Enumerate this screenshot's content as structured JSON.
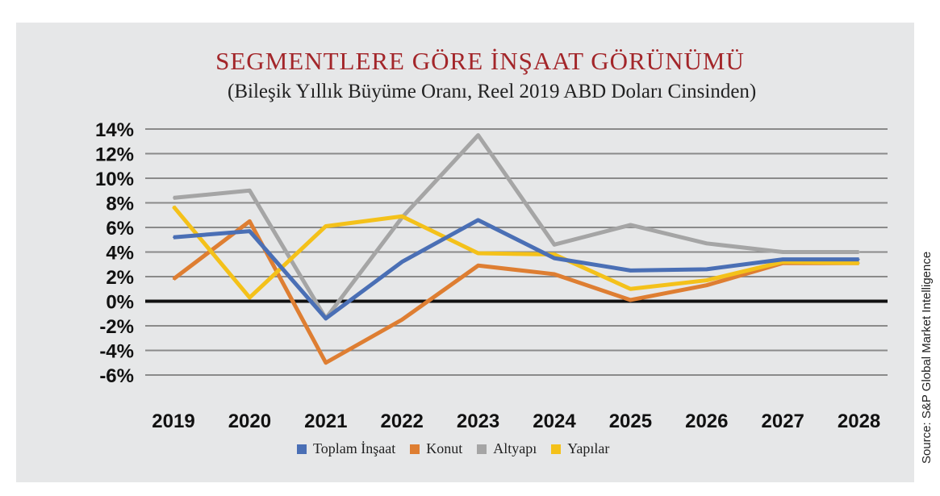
{
  "chart_data": {
    "type": "line",
    "title": "SEGMENTLERE GÖRE İNŞAAT GÖRÜNÜMÜ",
    "subtitle": "(Bileşik Yıllık Büyüme Oranı, Reel 2019 ABD Doları Cinsinden)",
    "source": "Source: S&P Global Market Intelligence",
    "categories": [
      "2019",
      "2020",
      "2021",
      "2022",
      "2023",
      "2024",
      "2025",
      "2026",
      "2027",
      "2028"
    ],
    "yticks": [
      "14%",
      "12%",
      "10%",
      "8%",
      "6%",
      "4%",
      "2%",
      "0%",
      "-2%",
      "-4%",
      "-6%"
    ],
    "ylim": [
      -6,
      14
    ],
    "grid": true,
    "legend_position": "bottom",
    "series": [
      {
        "name": "Toplam İnşaat",
        "color": "#4a6fb5",
        "values": [
          5.2,
          5.7,
          -1.4,
          3.2,
          6.6,
          3.5,
          2.5,
          2.6,
          3.4,
          3.4
        ]
      },
      {
        "name": "Konut",
        "color": "#de7e32",
        "values": [
          1.8,
          6.5,
          -5.0,
          -1.5,
          2.9,
          2.2,
          0.1,
          1.3,
          3.1,
          3.1
        ]
      },
      {
        "name": "Altyapı",
        "color": "#a5a5a5",
        "values": [
          8.4,
          9.0,
          -1.4,
          6.8,
          13.5,
          4.6,
          6.2,
          4.7,
          4.0,
          4.0
        ]
      },
      {
        "name": "Yapılar",
        "color": "#f4c11a",
        "values": [
          7.7,
          0.3,
          6.1,
          6.9,
          3.9,
          3.8,
          1.0,
          1.7,
          3.2,
          3.1
        ]
      }
    ]
  }
}
